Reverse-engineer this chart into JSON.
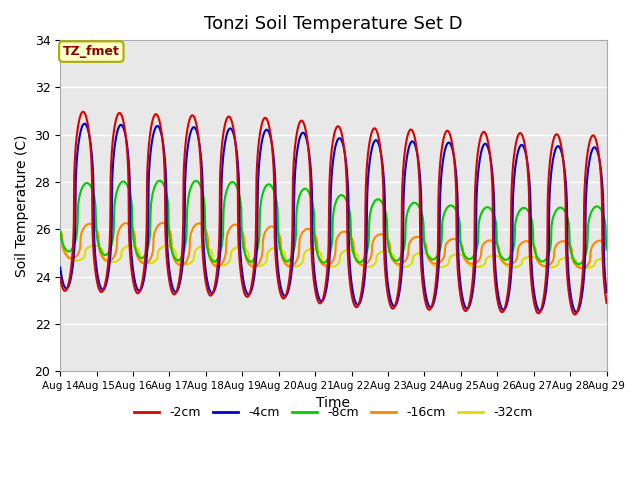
{
  "title": "Tonzi Soil Temperature Set D",
  "xlabel": "Time",
  "ylabel": "Soil Temperature (C)",
  "ylim": [
    20,
    34
  ],
  "xlim_days": [
    0,
    15
  ],
  "background_color": "#e8e8e8",
  "figure_color": "#ffffff",
  "grid_color": "#ffffff",
  "annotation_text": "TZ_fmet",
  "annotation_color": "#8b0000",
  "annotation_bg": "#ffffcc",
  "annotation_border": "#aaaa00",
  "series": {
    "-2cm": {
      "color": "#dd0000",
      "lw": 1.5
    },
    "-4cm": {
      "color": "#0000cc",
      "lw": 1.5
    },
    "-8cm": {
      "color": "#00cc00",
      "lw": 1.5
    },
    "-16cm": {
      "color": "#ff8800",
      "lw": 1.5
    },
    "-32cm": {
      "color": "#dddd00",
      "lw": 1.5
    }
  },
  "xtick_labels": [
    "Aug 14",
    "Aug 15",
    "Aug 16",
    "Aug 17",
    "Aug 18",
    "Aug 19",
    "Aug 20",
    "Aug 21",
    "Aug 22",
    "Aug 23",
    "Aug 24",
    "Aug 25",
    "Aug 26",
    "Aug 27",
    "Aug 28",
    "Aug 29"
  ],
  "xtick_positions": [
    0,
    1,
    2,
    3,
    4,
    5,
    6,
    7,
    8,
    9,
    10,
    11,
    12,
    13,
    14,
    15
  ],
  "ytick_positions": [
    20,
    22,
    24,
    26,
    28,
    30,
    32,
    34
  ],
  "legend_labels": [
    "-2cm",
    "-4cm",
    "-8cm",
    "-16cm",
    "-32cm"
  ],
  "legend_colors": [
    "#dd0000",
    "#0000cc",
    "#00cc00",
    "#ff8800",
    "#dddd00"
  ]
}
